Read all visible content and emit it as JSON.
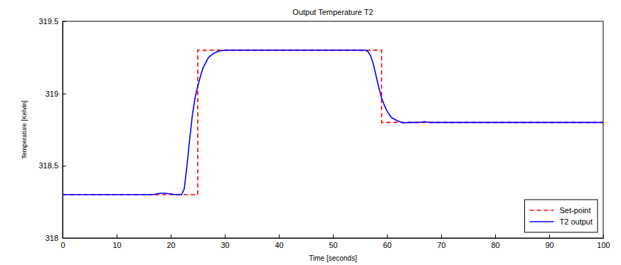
{
  "chart_data": {
    "type": "line",
    "title": "Output Temperature T2",
    "x_label": "Time [seconds]",
    "y_label": "Temperature [Kelvin]",
    "xlim": [
      0,
      100
    ],
    "xticks": [
      0,
      10,
      20,
      30,
      40,
      50,
      60,
      70,
      80,
      90,
      100
    ],
    "ylim": [
      318,
      319.5
    ],
    "yticks": [
      318,
      318.5,
      319,
      319.5
    ],
    "grid": false,
    "legend": "lower right",
    "series": [
      {
        "name": "Set-point",
        "color": "#ff0000",
        "line_style": "dashed",
        "x": [
          0,
          25,
          25,
          59,
          59,
          100
        ],
        "values": [
          318.3,
          318.3,
          319.3,
          319.3,
          318.8,
          318.8
        ]
      },
      {
        "name": "T2 output",
        "color": "#0000ff",
        "line_style": "solid",
        "x": [
          0,
          16,
          17,
          18,
          19,
          20,
          21,
          22,
          22.5,
          23,
          23.5,
          24,
          24.5,
          25,
          25.5,
          26,
          27,
          28,
          29,
          30,
          35,
          40,
          45,
          50,
          55,
          56,
          56.5,
          57,
          57.5,
          58,
          58.5,
          59,
          59.5,
          60,
          60.5,
          61,
          62,
          63,
          64,
          65,
          66,
          67,
          68,
          70,
          80,
          90,
          100
        ],
        "values": [
          318.3,
          318.3,
          318.302,
          318.31,
          318.31,
          318.305,
          318.3,
          318.3,
          318.34,
          318.5,
          318.68,
          318.85,
          318.97,
          319.05,
          319.12,
          319.18,
          319.25,
          319.28,
          319.295,
          319.3,
          319.3,
          319.3,
          319.3,
          319.3,
          319.3,
          319.3,
          319.29,
          319.26,
          319.2,
          319.12,
          319.04,
          318.97,
          318.92,
          318.88,
          318.85,
          318.83,
          318.81,
          318.797,
          318.8,
          318.8,
          318.8,
          318.805,
          318.8,
          318.8,
          318.8,
          318.8,
          318.8
        ]
      }
    ]
  }
}
